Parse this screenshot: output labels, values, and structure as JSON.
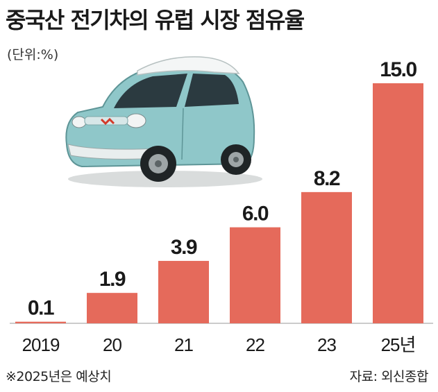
{
  "title": "중국산 전기차의 유럽 시장 점유율",
  "unit_label": "(단위:%)",
  "note": "※2025년은 예상치",
  "source": "자료: 외신종합",
  "colors": {
    "bar": "#e56a5b",
    "axis": "#bbbbbb",
    "text": "#1a1a1a"
  },
  "chart_data": {
    "type": "bar",
    "title": "중국산 전기차의 유럽 시장 점유율",
    "categories": [
      "2019",
      "20",
      "21",
      "22",
      "23",
      "25년"
    ],
    "values": [
      0.1,
      1.9,
      3.9,
      6.0,
      8.2,
      15.0
    ],
    "value_labels": [
      "0.1",
      "1.9",
      "3.9",
      "6.0",
      "8.2",
      "15.0"
    ],
    "ylabel": "",
    "xlabel": "",
    "ylim": [
      0,
      15.0
    ],
    "grid": false,
    "legend": "none"
  }
}
